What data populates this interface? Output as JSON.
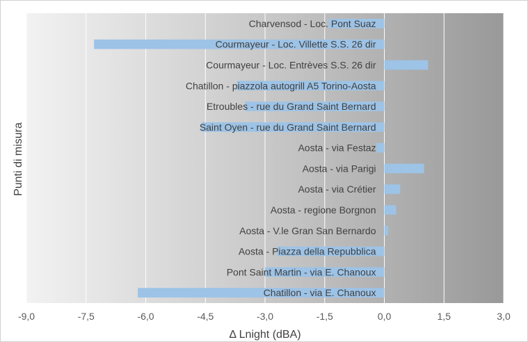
{
  "chart_data": {
    "type": "bar",
    "orientation": "horizontal",
    "categories": [
      "Charvensod - Loc. Pont Suaz",
      "Courmayeur - Loc. Villette  S.S. 26 dir",
      "Courmayeur - Loc. Entrèves  S.S. 26 dir",
      "Chatillon - piazzola autogrill A5 Torino-Aosta",
      "Etroubles - rue du Grand Saint Bernard",
      "Saint Oyen - rue du Grand Saint Bernard",
      "Aosta - via Festaz",
      "Aosta - via Parigi",
      "Aosta - via Crétier",
      "Aosta - regione Borgnon",
      "Aosta - V.le Gran San Bernardo",
      "Aosta - Piazza della Repubblica",
      "Pont Saint Martin - via E. Chanoux",
      "Chatillon - via E. Chanoux"
    ],
    "values": [
      -1.4,
      -7.3,
      1.1,
      -3.7,
      -3.5,
      -4.6,
      -0.2,
      1.0,
      0.4,
      0.3,
      0.1,
      -2.7,
      -3.0,
      -6.2
    ],
    "xlabel": "Δ Lnight (dBA)",
    "ylabel": "Punti di misura",
    "xlim": [
      -9.0,
      3.0
    ],
    "xticks": [
      "-9,0",
      "-7,5",
      "-6,0",
      "-4,5",
      "-3,0",
      "-1,5",
      "0,0",
      "1,5",
      "3,0"
    ],
    "tick_values": [
      -9.0,
      -7.5,
      -6.0,
      -4.5,
      -3.0,
      -1.5,
      0.0,
      1.5,
      3.0
    ],
    "grid": "vertical",
    "bar_color": "#9dc3e6",
    "background": "gray-gradient"
  }
}
